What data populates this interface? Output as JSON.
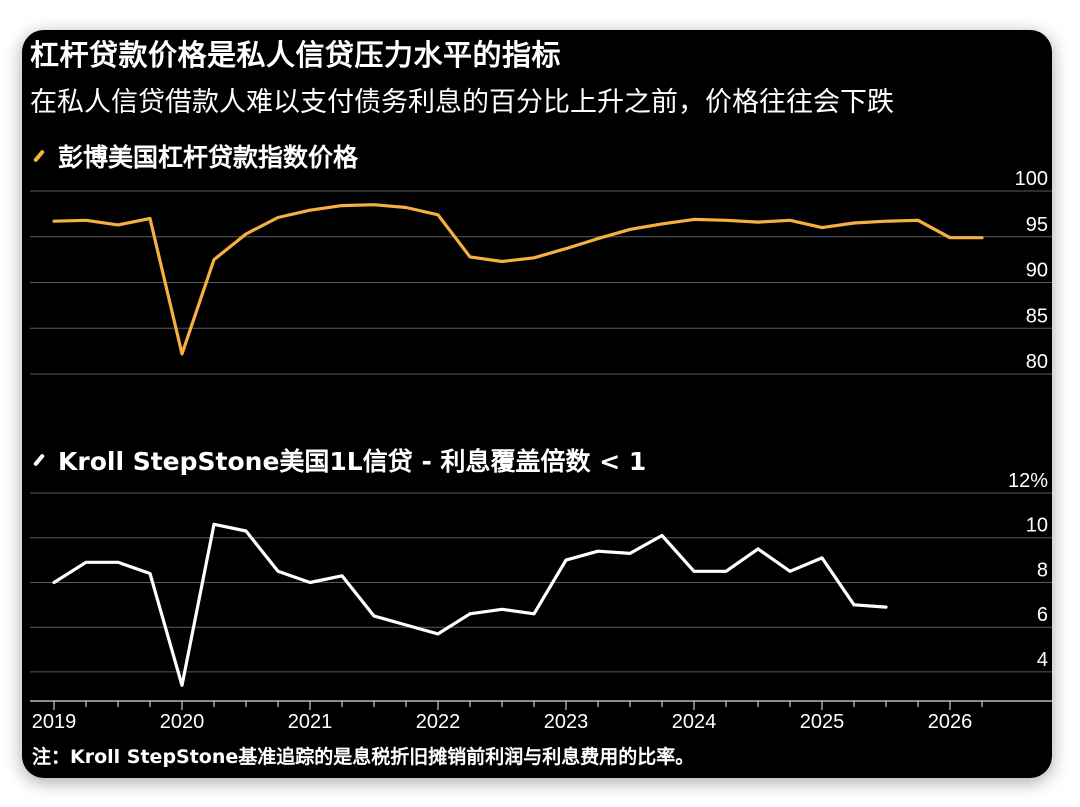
{
  "title": "杠杆贷款价格是私人信贷压力水平的指标",
  "subtitle": "在私人信贷借款人难以支付债务利息的百分比上升之前，价格往往会下跌",
  "note": "注：Kroll StepStone基准追踪的是息税折旧摊销前利润与利息费用的比率。",
  "chart_data": [
    {
      "type": "line",
      "legend": "彭博美国杠杆贷款指数价格",
      "color": "#f5b041",
      "ylim": [
        80,
        100
      ],
      "yticks": [
        "100",
        "95",
        "90",
        "85",
        "80"
      ],
      "yticks_values": [
        100,
        95,
        90,
        85,
        80
      ],
      "grid": true,
      "series": [
        {
          "x": [
            2019.0,
            2019.25,
            2019.5,
            2019.75,
            2020.0,
            2020.25,
            2020.5,
            2020.75,
            2021.0,
            2021.25,
            2021.5,
            2021.75,
            2022.0,
            2022.25,
            2022.5,
            2022.75,
            2023.0,
            2023.25,
            2023.5,
            2023.75,
            2024.0,
            2024.25,
            2024.5,
            2024.75,
            2025.0,
            2025.25,
            2025.5,
            2025.75,
            2026.0,
            2026.25
          ],
          "values": [
            96.7,
            96.8,
            96.3,
            97.0,
            82.2,
            92.5,
            95.3,
            97.1,
            97.9,
            98.4,
            98.5,
            98.2,
            97.4,
            92.8,
            92.3,
            92.7,
            93.7,
            94.8,
            95.8,
            96.4,
            96.9,
            96.8,
            96.6,
            96.8,
            96.0,
            96.5,
            96.7,
            96.8,
            94.9,
            94.9
          ]
        }
      ]
    },
    {
      "type": "line",
      "legend": "Kroll StepStone美国1L信贷 - 利息覆盖倍数 < 1",
      "color": "#ffffff",
      "ylim": [
        2.7,
        12
      ],
      "yticks": [
        "12%",
        "10",
        "8",
        "6",
        "4"
      ],
      "yticks_values": [
        12,
        10,
        8,
        6,
        4
      ],
      "grid": true,
      "x_tick_labels": [
        "2019",
        "2020",
        "2021",
        "2022",
        "2023",
        "2024",
        "2025",
        "2026"
      ],
      "series": [
        {
          "x": [
            2019.0,
            2019.25,
            2019.5,
            2019.75,
            2020.0,
            2020.25,
            2020.5,
            2020.75,
            2021.0,
            2021.25,
            2021.5,
            2021.75,
            2022.0,
            2022.25,
            2022.5,
            2022.75,
            2023.0,
            2023.25,
            2023.5,
            2023.75,
            2024.0,
            2024.25,
            2024.5,
            2024.75,
            2025.0,
            2025.25,
            2025.5
          ],
          "values": [
            8.0,
            8.9,
            8.9,
            8.4,
            3.4,
            10.6,
            10.3,
            8.5,
            8.0,
            8.3,
            6.5,
            6.1,
            5.7,
            6.6,
            6.8,
            6.6,
            9.0,
            9.4,
            9.3,
            10.1,
            8.5,
            8.5,
            9.5,
            8.5,
            9.1,
            7.0,
            6.9
          ]
        }
      ]
    }
  ]
}
